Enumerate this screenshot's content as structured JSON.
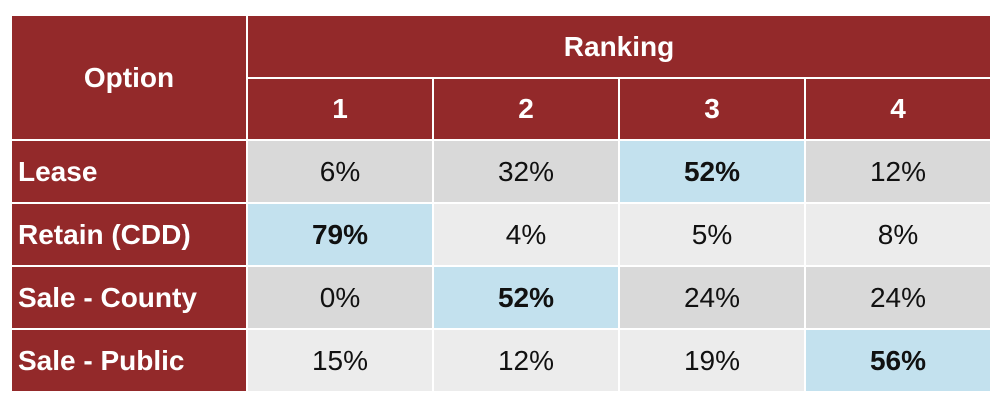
{
  "chart_data": {
    "type": "table",
    "colors": {
      "header": "#93292a",
      "row_dark": "#d9d9d9",
      "row_light": "#ececec",
      "highlight": "#c3e1ee"
    },
    "option_header": "Option",
    "ranking_header": "Ranking",
    "rank_columns": [
      "1",
      "2",
      "3",
      "4"
    ],
    "rows": [
      {
        "label": "Lease",
        "values": [
          "6%",
          "32%",
          "52%",
          "12%"
        ],
        "numeric": [
          6,
          32,
          52,
          12
        ],
        "highlight_index": 2
      },
      {
        "label": "Retain (CDD)",
        "values": [
          "79%",
          "4%",
          "5%",
          "8%"
        ],
        "numeric": [
          79,
          4,
          5,
          8
        ],
        "highlight_index": 0
      },
      {
        "label": "Sale - County",
        "values": [
          "0%",
          "52%",
          "24%",
          "24%"
        ],
        "numeric": [
          0,
          52,
          24,
          24
        ],
        "highlight_index": 1
      },
      {
        "label": "Sale - Public",
        "values": [
          "15%",
          "12%",
          "19%",
          "56%"
        ],
        "numeric": [
          15,
          12,
          19,
          56
        ],
        "highlight_index": 3
      }
    ]
  }
}
